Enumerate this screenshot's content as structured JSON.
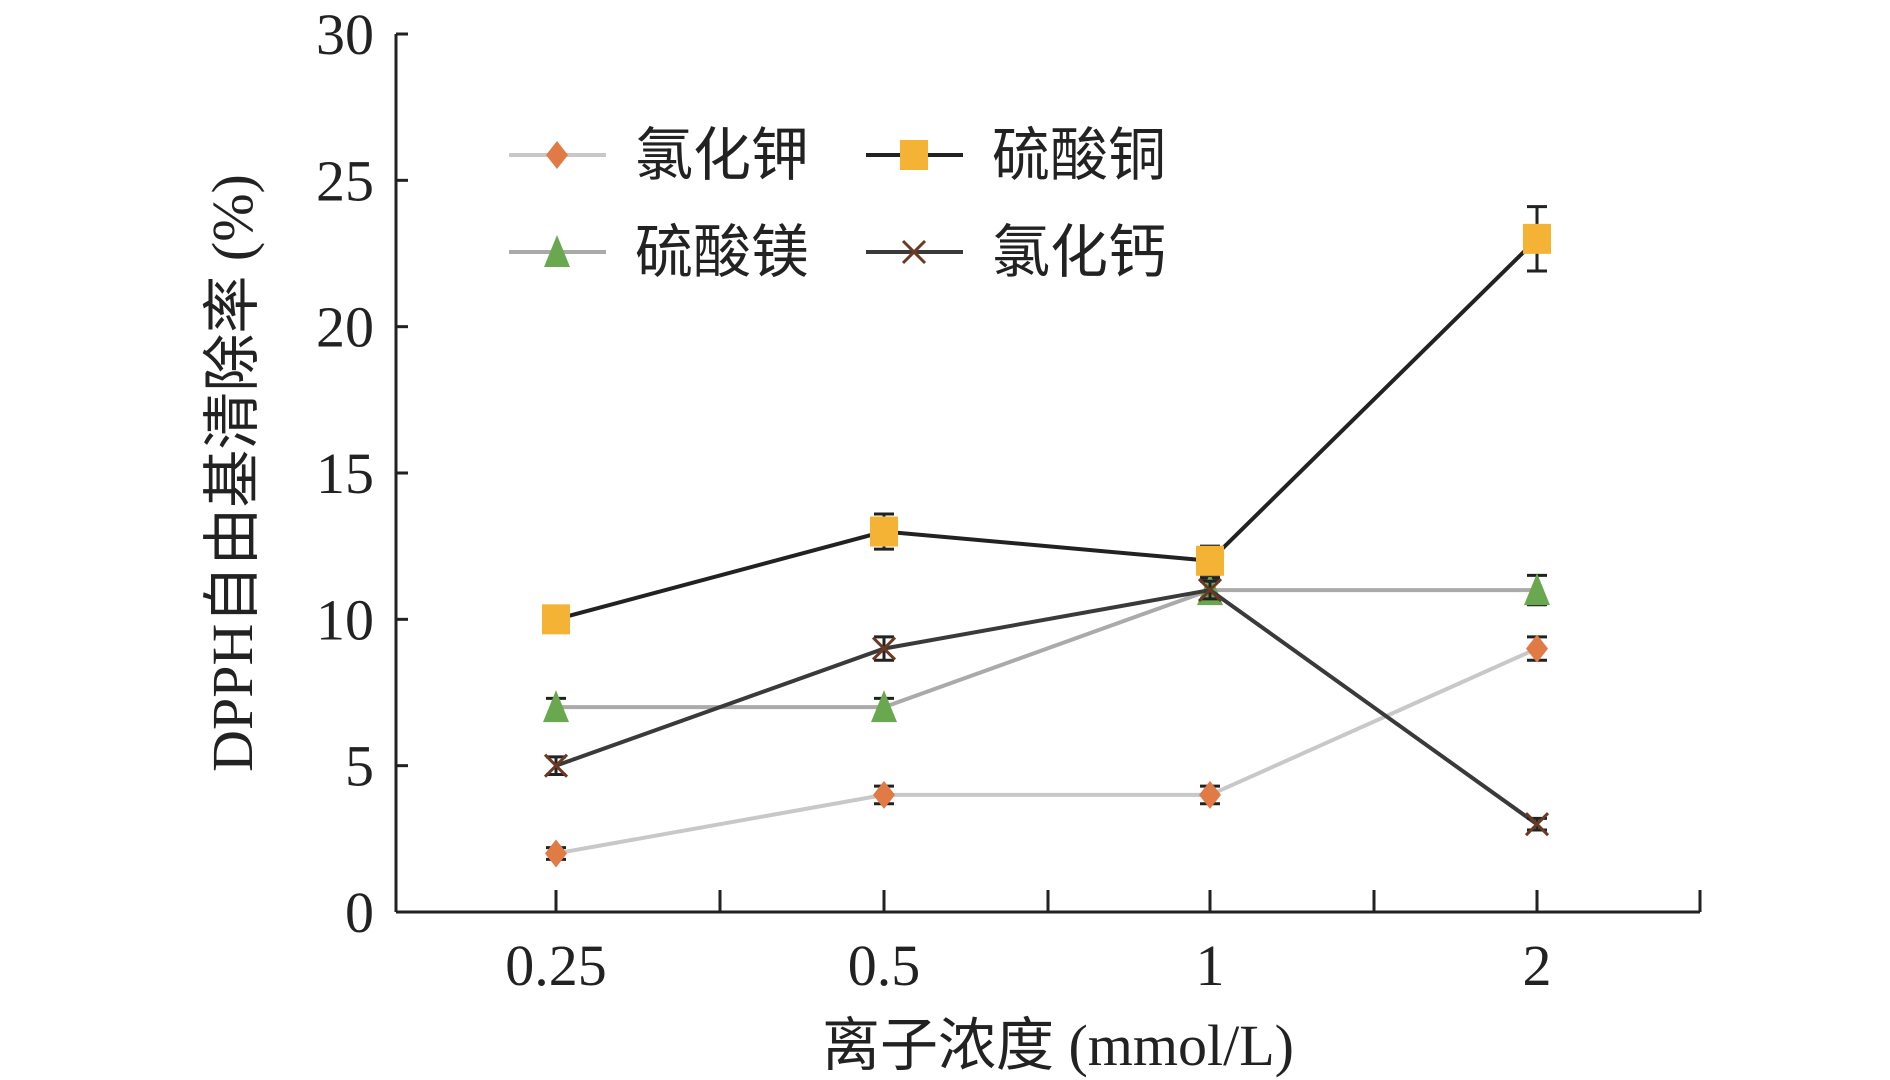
{
  "chart_data": {
    "type": "line",
    "title": "",
    "xlabel": "离子浓度 (mmol/L)",
    "ylabel": "DPPH自由基清除率 (%)",
    "categories": [
      "0.25",
      "0.5",
      "1",
      "2"
    ],
    "ylim": [
      0,
      30
    ],
    "yticks": [
      "0",
      "5",
      "10",
      "15",
      "20",
      "25",
      "30"
    ],
    "grid": false,
    "legend_position": "top-left",
    "series": [
      {
        "name": "氯化钾",
        "marker": "diamond",
        "line_color": "#c8c8c8",
        "marker_color": "#e07b45",
        "values": [
          2,
          4,
          4,
          9
        ],
        "errors": [
          0.2,
          0.3,
          0.3,
          0.4
        ]
      },
      {
        "name": "硫酸铜",
        "marker": "square",
        "line_color": "#222222",
        "marker_color": "#f5b335",
        "values": [
          10,
          13,
          12,
          23
        ],
        "errors": [
          0.4,
          0.6,
          0.5,
          1.1
        ]
      },
      {
        "name": "硫酸镁",
        "marker": "triangle",
        "line_color": "#aaaaaa",
        "marker_color": "#6aa84f",
        "values": [
          7,
          7,
          11,
          11
        ],
        "errors": [
          0.3,
          0.3,
          0.4,
          0.5
        ]
      },
      {
        "name": "氯化钙",
        "marker": "x",
        "line_color": "#3a3a3a",
        "marker_color": "#6b3a24",
        "values": [
          5,
          9,
          11,
          3
        ],
        "errors": [
          0.3,
          0.4,
          0.3,
          0.2
        ]
      }
    ]
  }
}
